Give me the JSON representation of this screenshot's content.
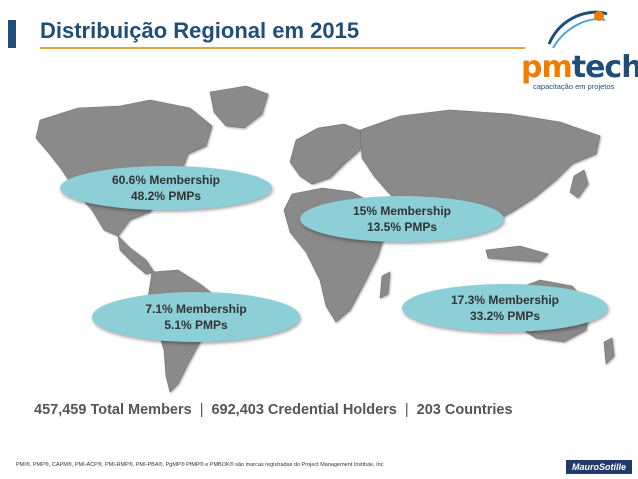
{
  "header": {
    "title": "Distribuição Regional em 2015"
  },
  "logo": {
    "brand_part1": "pm",
    "brand_part2": "tech",
    "tagline": "capacitação em projetos"
  },
  "regions": [
    {
      "membership": "60.6% Membership",
      "pmps": "48.2% PMPs"
    },
    {
      "membership": "15% Membership",
      "pmps": "13.5% PMPs"
    },
    {
      "membership": "7.1% Membership",
      "pmps": "5.1% PMPs"
    },
    {
      "membership": "17.3% Membership",
      "pmps": "33.2% PMPs"
    }
  ],
  "totals": {
    "members": "457,459 Total Members",
    "separator": "|",
    "credentials": "692,403 Credential Holders",
    "countries": "203 Countries"
  },
  "footer": {
    "trademarks": "PMI®, PMP®, CAPM®, PMI-ACP®, PMI-RMP®, PMI-PBA®, PgMP® PfMP® e PMBOK® são marcas registradas do Project Management Institute, Inc",
    "author_badge": "MauroSotille"
  },
  "colors": {
    "title": "#1f4e79",
    "underline": "#e6a23c",
    "bubble": "#8ccfd6",
    "land": "#8a8a8a",
    "logo_orange": "#f07d00"
  }
}
